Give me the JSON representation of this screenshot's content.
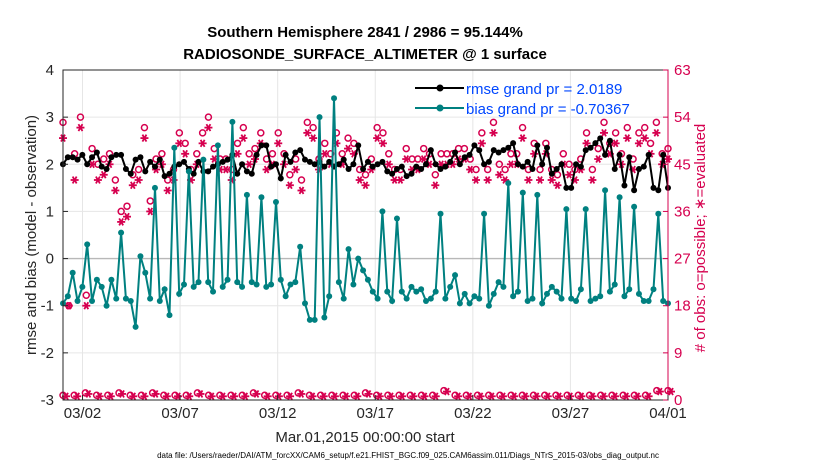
{
  "chart_data": {
    "type": "line",
    "title": "Southern Hemisphere 2841 / 2986 = 95.144%",
    "subtitle": "RADIOSONDE_SURFACE_ALTIMETER @ 1 surface",
    "xlabel": "Mar.01,2015 00:00:00 start",
    "ylabel": "rmse and bias (model - observation)",
    "ylabel_right": "# of obs: o=possible; ∗=evaluated",
    "footer": "data file: /Users/raeder/DAI/ATM_forcXX/CAM6_setup/f.e21.FHIST_BGC.f09_025.CAM6assim.011/Diags_NTrS_2015-03/obs_diag_output.nc",
    "xlim": [
      1,
      32
    ],
    "ylim": [
      -3,
      4
    ],
    "ylim_right": [
      0,
      63
    ],
    "x_ticks": [
      2,
      7,
      12,
      17,
      22,
      27,
      32
    ],
    "x_tick_labels": [
      "03/02",
      "03/07",
      "03/12",
      "03/17",
      "03/22",
      "03/27",
      "04/01"
    ],
    "y_ticks": [
      -3,
      -2,
      -1,
      0,
      1,
      2,
      3,
      4
    ],
    "y_tick_labels": [
      "-3",
      "-2",
      "-1",
      "0",
      "1",
      "2",
      "3",
      "4"
    ],
    "y_ticks_right": [
      0,
      9,
      18,
      27,
      36,
      45,
      54,
      63
    ],
    "y_tick_labels_right": [
      "0",
      "9",
      "18",
      "27",
      "36",
      "45",
      "54",
      "63"
    ],
    "zero_line": 0,
    "grid": true,
    "legend_position": "top-right",
    "colors": {
      "rmse": "#000000",
      "bias": "#008080",
      "obs": "#d6004f",
      "axis": "#262626",
      "legend_text": "#0047ff"
    },
    "series": [
      {
        "name": "rmse grand pr = 2.0189",
        "marker": "dot",
        "values": [
          2.0,
          2.15,
          2.15,
          2.1,
          2.2,
          2.0,
          2.15,
          2.25,
          1.95,
          1.9,
          2.15,
          2.2,
          2.2,
          1.9,
          1.8,
          2.1,
          2.15,
          1.85,
          2.05,
          1.95,
          2.1,
          1.75,
          1.8,
          1.95,
          2.0,
          2.05,
          1.9,
          1.8,
          2.05,
          1.85,
          1.85,
          1.95,
          2.0,
          2.05,
          2.1,
          2.2,
          1.8,
          2.0,
          1.85,
          1.8,
          2.2,
          2.4,
          2.4,
          1.95,
          2.0,
          1.7,
          2.2,
          2.05,
          2.25,
          2.3,
          2.1,
          2.05,
          2.0,
          2.05,
          1.95,
          2.05,
          1.95,
          2.0,
          2.1,
          1.9,
          2.0,
          2.4,
          1.9,
          2.05,
          1.95,
          2.0,
          2.05,
          1.85,
          1.8,
          1.9,
          1.95,
          1.75,
          1.8,
          1.95,
          1.9,
          2.0,
          2.3,
          2.0,
          1.9,
          1.95,
          2.05,
          2.25,
          2.0,
          2.15,
          2.2,
          2.4,
          2.3,
          2.0,
          2.05,
          2.3,
          2.25,
          2.3,
          2.35,
          2.45,
          2.0,
          1.95,
          2.05,
          1.9,
          2.4,
          2.0,
          2.35,
          1.8,
          1.9,
          2.0,
          1.5,
          1.5,
          2.0,
          1.95,
          2.3,
          2.35,
          2.45,
          2.55,
          2.2,
          2.5,
          1.9,
          2.2,
          1.55,
          2.15,
          1.45,
          1.9,
          1.95,
          2.2,
          1.5,
          1.45,
          2.2,
          1.5
        ]
      },
      {
        "name": "bias grand pr = -0.70367",
        "marker": "dot",
        "values": [
          -0.95,
          -0.8,
          -0.3,
          -0.9,
          -0.6,
          0.3,
          -0.9,
          -0.45,
          -0.6,
          -1.0,
          -0.45,
          -0.85,
          0.55,
          -0.85,
          -0.9,
          -1.45,
          0.05,
          -0.3,
          -0.85,
          1.5,
          -0.9,
          -0.65,
          -1.2,
          2.35,
          -0.75,
          -0.55,
          1.85,
          -0.6,
          -0.5,
          2.1,
          -0.5,
          -0.7,
          2.4,
          -0.6,
          -0.45,
          2.9,
          -0.5,
          -0.6,
          1.35,
          -0.5,
          -0.55,
          1.3,
          -0.6,
          -0.55,
          1.2,
          -0.45,
          -0.8,
          -0.55,
          -0.5,
          0.25,
          -0.95,
          -1.3,
          -1.3,
          3.0,
          -1.25,
          -0.8,
          3.4,
          -0.5,
          -0.85,
          0.2,
          -0.55,
          0.0,
          -0.25,
          -0.45,
          -0.7,
          -0.85,
          1.0,
          -0.7,
          -0.9,
          0.85,
          -0.7,
          -0.85,
          -0.6,
          -0.7,
          -0.65,
          -0.9,
          -0.85,
          -0.7,
          0.95,
          -0.85,
          -0.6,
          -0.35,
          -0.95,
          -0.75,
          -0.95,
          -0.8,
          -0.85,
          0.95,
          -1.0,
          -0.75,
          -0.5,
          -0.6,
          1.6,
          -0.8,
          -0.7,
          1.4,
          -0.9,
          -0.85,
          1.35,
          -0.95,
          -0.75,
          -0.6,
          -0.7,
          -0.85,
          1.05,
          -0.85,
          -0.9,
          -0.65,
          1.05,
          -0.9,
          -0.85,
          -0.8,
          1.45,
          -0.7,
          -0.55,
          1.3,
          -0.8,
          -0.65,
          1.1,
          -0.75,
          -0.9,
          -0.9,
          -0.65,
          0.95,
          -0.9,
          -0.95
        ]
      },
      {
        "name": "possible",
        "marker": "circle",
        "axis": "right",
        "values": [
          53,
          18,
          47,
          54,
          20,
          48,
          45,
          46,
          47,
          42,
          36,
          37,
          43,
          44,
          52,
          38,
          46,
          47,
          42,
          44,
          51,
          49,
          44,
          47,
          51,
          54,
          48,
          46,
          46,
          44,
          49,
          52,
          47,
          48,
          51,
          46,
          47,
          51,
          47,
          43,
          46,
          42,
          53,
          52,
          46,
          49,
          47,
          51,
          47,
          50,
          49,
          44,
          43,
          46,
          52,
          51,
          47,
          44,
          44,
          48,
          46,
          46,
          48,
          47,
          43,
          47,
          47,
          47,
          48,
          48,
          46,
          44,
          51,
          44,
          53,
          45,
          44,
          47,
          47,
          52,
          44,
          49,
          44,
          49,
          44,
          43,
          47,
          45,
          44,
          46,
          51,
          44,
          48,
          53,
          49,
          51,
          47,
          52,
          46,
          51,
          52,
          49,
          53,
          47,
          48
        ]
      },
      {
        "name": "evaluated",
        "marker": "asterisk",
        "axis": "right",
        "values": [
          50,
          18,
          42,
          52,
          18,
          45,
          42,
          43,
          45,
          40,
          34,
          35,
          41,
          42,
          50,
          36,
          44,
          45,
          40,
          42,
          49,
          47,
          42,
          45,
          49,
          52,
          46,
          44,
          44,
          42,
          47,
          50,
          45,
          46,
          49,
          44,
          45,
          49,
          45,
          41,
          44,
          40,
          51,
          50,
          44,
          47,
          45,
          49,
          45,
          48,
          47,
          42,
          41,
          44,
          50,
          49,
          45,
          42,
          42,
          46,
          44,
          44,
          46,
          45,
          41,
          45,
          45,
          45,
          46,
          46,
          44,
          42,
          49,
          42,
          51,
          43,
          42,
          45,
          45,
          50,
          42,
          47,
          42,
          47,
          42,
          41,
          45,
          43,
          42,
          44,
          49,
          42,
          46,
          51,
          47,
          49,
          45,
          50,
          44,
          49,
          50,
          47,
          51,
          45,
          46
        ]
      },
      {
        "name": "possible-bottom",
        "marker": "circle",
        "axis": "left",
        "values": [
          -2.9,
          -2.9,
          -2.85,
          -2.9,
          -2.9,
          -2.85,
          -2.9,
          -2.9,
          -2.85,
          -2.9,
          -2.9,
          -2.9,
          -2.85,
          -2.9,
          -2.9,
          -2.9,
          -2.9,
          -2.85,
          -2.9,
          -2.9,
          -2.9,
          -2.85,
          -2.9,
          -2.9,
          -2.9,
          -2.9,
          -2.9,
          -2.85,
          -2.9,
          -2.9,
          -2.9,
          -2.9,
          -2.9,
          -2.9,
          -2.8,
          -2.9,
          -2.9,
          -2.9,
          -2.9,
          -2.9,
          -2.9,
          -2.9,
          -2.9,
          -2.9,
          -2.9,
          -2.9,
          -2.9,
          -2.9,
          -2.9,
          -2.9,
          -2.9,
          -2.9,
          -2.9,
          -2.8,
          -2.8
        ]
      }
    ]
  },
  "legend": {
    "rmse_label": "rmse grand pr = 2.0189",
    "bias_label": "bias grand pr = -0.70367"
  }
}
